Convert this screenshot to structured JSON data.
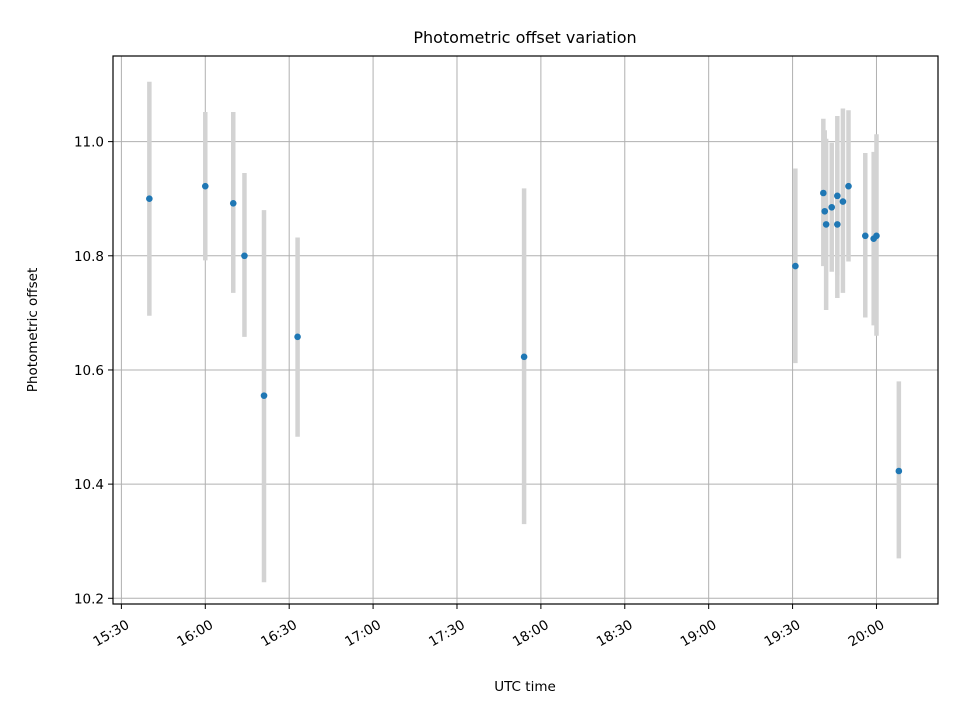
{
  "chart_data": {
    "type": "scatter",
    "title": "Photometric offset variation",
    "xlabel": "UTC time",
    "ylabel": "Photometric offset",
    "xlim": [
      "15:27",
      "20:22"
    ],
    "ylim": [
      10.19,
      11.15
    ],
    "grid": true,
    "xticks": [
      "15:30",
      "16:00",
      "16:30",
      "17:00",
      "17:30",
      "18:00",
      "18:30",
      "19:00",
      "19:30",
      "20:00"
    ],
    "yticks": [
      "10.2",
      "10.4",
      "10.6",
      "10.8",
      "11.0"
    ],
    "errorbar_color": "#d3d3d3",
    "point_color": "#1f77b4",
    "points": [
      {
        "x": "15:40",
        "y": 10.9,
        "ylow": 10.695,
        "yhigh": 11.105
      },
      {
        "x": "16:00",
        "y": 10.922,
        "ylow": 10.792,
        "yhigh": 11.052
      },
      {
        "x": "16:10",
        "y": 10.892,
        "ylow": 10.735,
        "yhigh": 11.052
      },
      {
        "x": "16:14",
        "y": 10.8,
        "ylow": 10.658,
        "yhigh": 10.945
      },
      {
        "x": "16:21",
        "y": 10.555,
        "ylow": 10.228,
        "yhigh": 10.88
      },
      {
        "x": "16:33",
        "y": 10.658,
        "ylow": 10.483,
        "yhigh": 10.832
      },
      {
        "x": "17:54",
        "y": 10.623,
        "ylow": 10.33,
        "yhigh": 10.918
      },
      {
        "x": "19:31",
        "y": 10.782,
        "ylow": 10.612,
        "yhigh": 10.953
      },
      {
        "x": "19:41",
        "y": 10.91,
        "ylow": 10.782,
        "yhigh": 11.04
      },
      {
        "x": "19:41:30",
        "y": 10.878,
        "ylow": 10.785,
        "yhigh": 11.02
      },
      {
        "x": "19:42",
        "y": 10.855,
        "ylow": 10.705,
        "yhigh": 11.005
      },
      {
        "x": "19:44",
        "y": 10.885,
        "ylow": 10.772,
        "yhigh": 10.998
      },
      {
        "x": "19:46",
        "y": 10.905,
        "ylow": 10.766,
        "yhigh": 11.045
      },
      {
        "x": "19:46",
        "y": 10.855,
        "ylow": 10.726,
        "yhigh": 10.984
      },
      {
        "x": "19:48",
        "y": 10.895,
        "ylow": 10.735,
        "yhigh": 11.058
      },
      {
        "x": "19:50",
        "y": 10.922,
        "ylow": 10.79,
        "yhigh": 11.055
      },
      {
        "x": "19:56",
        "y": 10.835,
        "ylow": 10.692,
        "yhigh": 10.98
      },
      {
        "x": "19:59",
        "y": 10.83,
        "ylow": 10.678,
        "yhigh": 10.982
      },
      {
        "x": "20:00",
        "y": 10.835,
        "ylow": 10.66,
        "yhigh": 11.013
      },
      {
        "x": "20:08",
        "y": 10.423,
        "ylow": 10.27,
        "yhigh": 10.58
      }
    ]
  }
}
